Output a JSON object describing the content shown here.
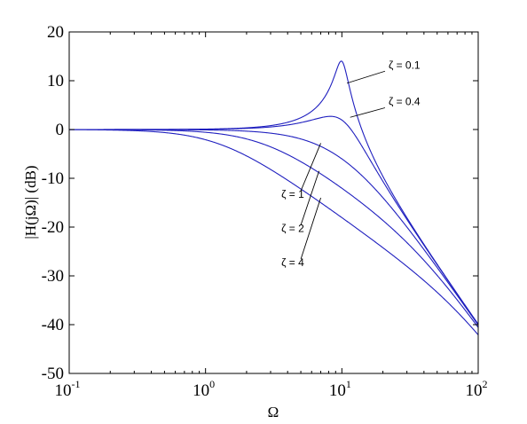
{
  "chart_data": {
    "type": "line",
    "xlabel": "Ω",
    "ylabel": "|H(jΩ)| (dB)",
    "xscale": "log",
    "xlim": [
      0.1,
      100
    ],
    "ylim": [
      -50,
      20
    ],
    "grid": false,
    "line_color": "#1f1fbf",
    "x_ticks": [
      {
        "base": "10",
        "exp": "-1",
        "value": 0.1
      },
      {
        "base": "10",
        "exp": "0",
        "value": 1
      },
      {
        "base": "10",
        "exp": "1",
        "value": 10
      },
      {
        "base": "10",
        "exp": "2",
        "value": 100
      }
    ],
    "y_ticks": [
      {
        "label": "20",
        "value": 20
      },
      {
        "label": "10",
        "value": 10
      },
      {
        "label": "0",
        "value": 0
      },
      {
        "label": "-10",
        "value": -10
      },
      {
        "label": "-20",
        "value": -20
      },
      {
        "label": "-30",
        "value": -30
      },
      {
        "label": "-40",
        "value": -40
      },
      {
        "label": "-50",
        "value": -50
      }
    ],
    "omega_n": 10,
    "series": [
      {
        "zeta": 0.1
      },
      {
        "zeta": 0.4
      },
      {
        "zeta": 1
      },
      {
        "zeta": 2
      },
      {
        "zeta": 4
      }
    ],
    "annotations": [
      {
        "text": "ζ = 0.1",
        "zeta": 0.1,
        "point": [
          10.9,
          9.5
        ],
        "label_at": [
          22,
          12.5
        ]
      },
      {
        "text": "ζ = 0.4",
        "zeta": 0.4,
        "point": [
          11.5,
          2.5
        ],
        "label_at": [
          22,
          5
        ]
      },
      {
        "text": "ζ = 1",
        "zeta": 1,
        "point": [
          7.0,
          -2.8
        ],
        "label_at": [
          3.6,
          -14
        ]
      },
      {
        "text": "ζ = 2",
        "zeta": 2,
        "point": [
          6.8,
          -8.5
        ],
        "label_at": [
          3.6,
          -21
        ]
      },
      {
        "text": "ζ = 4",
        "zeta": 4,
        "point": [
          7.0,
          -14
        ],
        "label_at": [
          3.6,
          -28
        ]
      }
    ]
  }
}
